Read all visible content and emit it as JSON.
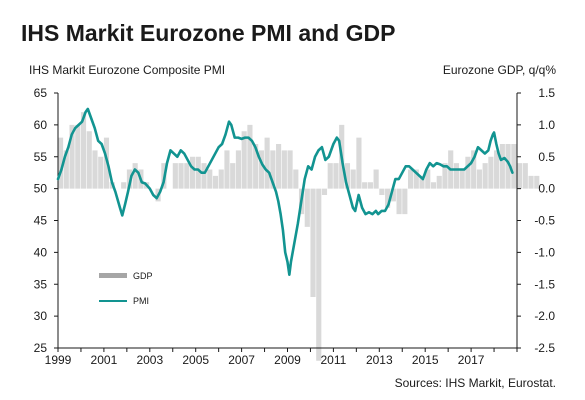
{
  "page": {
    "title": "IHS Markit Eurozone PMI and GDP",
    "source": "Sources: IHS Markit, Eurostat."
  },
  "colors": {
    "pmi": "#129491",
    "gdp": "#d9d9d9",
    "gdp_legend": "#a6a6a6",
    "axis": "#1a1a1a"
  },
  "chart_data": {
    "type": "bar+line",
    "title": "IHS Markit Eurozone PMI and GDP",
    "ylabel_left": "IHS Markit Eurozone Composite PMI",
    "ylabel_right": "Eurozone GDP, q/q%",
    "xlim": [
      1999.0,
      2019.0
    ],
    "ylim_left": [
      25,
      65
    ],
    "ylim_right": [
      -2.5,
      1.5
    ],
    "yticks_left": [
      25,
      30,
      35,
      40,
      45,
      50,
      55,
      60,
      65
    ],
    "yticks_right": [
      "-2.5",
      "-2.0",
      "-1.5",
      "-1.0",
      "-0.5",
      "0.0",
      "0.5",
      "1.0",
      "1.5"
    ],
    "xticks": [
      "1999",
      "2001",
      "2003",
      "2005",
      "2007",
      "2009",
      "2011",
      "2013",
      "2015",
      "2017"
    ],
    "legend": {
      "placement": "lower-left",
      "entries": [
        "GDP",
        "PMI"
      ]
    },
    "series": [
      {
        "name": "GDP",
        "kind": "bar",
        "axis": "right",
        "quarter_start": 1999.0,
        "values": [
          0.8,
          0.6,
          1.0,
          1.0,
          1.2,
          0.9,
          0.6,
          0.5,
          0.8,
          0.1,
          0.0,
          0.1,
          0.3,
          0.4,
          0.3,
          0.1,
          0.0,
          -0.2,
          0.4,
          0.0,
          0.4,
          0.4,
          0.4,
          0.5,
          0.5,
          0.4,
          0.3,
          0.2,
          0.3,
          0.6,
          0.4,
          0.6,
          0.9,
          1.0,
          0.7,
          0.6,
          0.8,
          0.6,
          0.7,
          0.6,
          0.6,
          0.3,
          -0.4,
          -0.6,
          -1.7,
          -2.7,
          -0.1,
          0.4,
          0.4,
          1.0,
          0.4,
          0.3,
          0.8,
          0.1,
          0.1,
          0.3,
          -0.1,
          -0.3,
          -0.2,
          -0.4,
          -0.4,
          0.3,
          0.3,
          0.2,
          0.3,
          0.1,
          0.2,
          0.4,
          0.6,
          0.4,
          0.3,
          0.5,
          0.6,
          0.3,
          0.4,
          0.5,
          0.6,
          0.7,
          0.7,
          0.7,
          0.4,
          0.4,
          0.2,
          0.2
        ]
      },
      {
        "name": "PMI",
        "kind": "line",
        "axis": "left",
        "points": [
          [
            1999.0,
            51.5
          ],
          [
            1999.15,
            53.0
          ],
          [
            1999.3,
            55.0
          ],
          [
            1999.45,
            56.5
          ],
          [
            1999.6,
            58.5
          ],
          [
            1999.75,
            59.5
          ],
          [
            1999.9,
            60.0
          ],
          [
            2000.05,
            60.5
          ],
          [
            2000.2,
            62.0
          ],
          [
            2000.3,
            62.5
          ],
          [
            2000.45,
            61.0
          ],
          [
            2000.6,
            59.5
          ],
          [
            2000.75,
            57.5
          ],
          [
            2000.9,
            57.0
          ],
          [
            2001.05,
            55.5
          ],
          [
            2001.2,
            53.5
          ],
          [
            2001.35,
            51.0
          ],
          [
            2001.5,
            49.5
          ],
          [
            2001.7,
            47.0
          ],
          [
            2001.8,
            45.8
          ],
          [
            2001.92,
            47.5
          ],
          [
            2002.05,
            49.5
          ],
          [
            2002.2,
            52.0
          ],
          [
            2002.35,
            53.0
          ],
          [
            2002.5,
            52.5
          ],
          [
            2002.65,
            51.0
          ],
          [
            2002.8,
            50.8
          ],
          [
            2003.0,
            50.0
          ],
          [
            2003.15,
            49.0
          ],
          [
            2003.3,
            48.5
          ],
          [
            2003.45,
            49.5
          ],
          [
            2003.6,
            51.0
          ],
          [
            2003.75,
            54.0
          ],
          [
            2003.9,
            56.0
          ],
          [
            2004.05,
            55.5
          ],
          [
            2004.2,
            55.0
          ],
          [
            2004.35,
            56.0
          ],
          [
            2004.5,
            55.5
          ],
          [
            2004.65,
            54.5
          ],
          [
            2004.8,
            53.5
          ],
          [
            2004.95,
            53.0
          ],
          [
            2005.1,
            53.0
          ],
          [
            2005.25,
            52.5
          ],
          [
            2005.4,
            52.5
          ],
          [
            2005.55,
            53.5
          ],
          [
            2005.7,
            54.5
          ],
          [
            2005.85,
            55.5
          ],
          [
            2006.0,
            56.5
          ],
          [
            2006.15,
            57.0
          ],
          [
            2006.3,
            58.5
          ],
          [
            2006.45,
            60.5
          ],
          [
            2006.55,
            60.0
          ],
          [
            2006.7,
            58.0
          ],
          [
            2006.85,
            58.0
          ],
          [
            2007.0,
            57.8
          ],
          [
            2007.15,
            58.0
          ],
          [
            2007.3,
            58.0
          ],
          [
            2007.45,
            57.5
          ],
          [
            2007.6,
            56.5
          ],
          [
            2007.75,
            55.0
          ],
          [
            2007.9,
            53.8
          ],
          [
            2008.05,
            53.0
          ],
          [
            2008.2,
            52.5
          ],
          [
            2008.35,
            51.0
          ],
          [
            2008.5,
            49.5
          ],
          [
            2008.6,
            48.0
          ],
          [
            2008.7,
            46.0
          ],
          [
            2008.8,
            43.5
          ],
          [
            2008.9,
            40.0
          ],
          [
            2009.0,
            38.5
          ],
          [
            2009.08,
            36.5
          ],
          [
            2009.15,
            38.5
          ],
          [
            2009.3,
            41.5
          ],
          [
            2009.45,
            44.5
          ],
          [
            2009.6,
            48.0
          ],
          [
            2009.75,
            51.5
          ],
          [
            2009.9,
            53.5
          ],
          [
            2010.05,
            53.0
          ],
          [
            2010.2,
            55.0
          ],
          [
            2010.35,
            56.0
          ],
          [
            2010.5,
            56.5
          ],
          [
            2010.65,
            54.5
          ],
          [
            2010.8,
            55.0
          ],
          [
            2011.0,
            57.0
          ],
          [
            2011.15,
            58.0
          ],
          [
            2011.25,
            57.5
          ],
          [
            2011.4,
            54.0
          ],
          [
            2011.55,
            51.0
          ],
          [
            2011.7,
            49.0
          ],
          [
            2011.85,
            47.0
          ],
          [
            2011.95,
            46.5
          ],
          [
            2012.1,
            49.0
          ],
          [
            2012.25,
            47.0
          ],
          [
            2012.4,
            46.0
          ],
          [
            2012.55,
            46.3
          ],
          [
            2012.7,
            46.0
          ],
          [
            2012.85,
            46.5
          ],
          [
            2012.95,
            46.0
          ],
          [
            2013.1,
            46.5
          ],
          [
            2013.25,
            46.5
          ],
          [
            2013.4,
            47.5
          ],
          [
            2013.55,
            49.5
          ],
          [
            2013.7,
            51.5
          ],
          [
            2013.85,
            51.5
          ],
          [
            2014.0,
            52.5
          ],
          [
            2014.15,
            53.5
          ],
          [
            2014.3,
            53.5
          ],
          [
            2014.45,
            53.0
          ],
          [
            2014.6,
            52.5
          ],
          [
            2014.75,
            52.0
          ],
          [
            2014.9,
            51.5
          ],
          [
            2015.05,
            53.0
          ],
          [
            2015.2,
            54.0
          ],
          [
            2015.35,
            53.5
          ],
          [
            2015.5,
            54.0
          ],
          [
            2015.65,
            53.8
          ],
          [
            2015.8,
            53.5
          ],
          [
            2015.95,
            53.5
          ],
          [
            2016.1,
            53.0
          ],
          [
            2016.25,
            53.0
          ],
          [
            2016.4,
            53.0
          ],
          [
            2016.55,
            53.0
          ],
          [
            2016.7,
            53.0
          ],
          [
            2016.85,
            53.5
          ],
          [
            2017.0,
            54.0
          ],
          [
            2017.15,
            55.0
          ],
          [
            2017.3,
            56.5
          ],
          [
            2017.45,
            56.0
          ],
          [
            2017.6,
            55.5
          ],
          [
            2017.75,
            56.0
          ],
          [
            2017.85,
            57.5
          ],
          [
            2017.95,
            58.5
          ],
          [
            2018.0,
            58.8
          ],
          [
            2018.1,
            57.0
          ],
          [
            2018.2,
            55.5
          ],
          [
            2018.3,
            54.5
          ],
          [
            2018.45,
            54.8
          ],
          [
            2018.6,
            54.2
          ],
          [
            2018.7,
            53.5
          ],
          [
            2018.8,
            52.5
          ]
        ]
      }
    ]
  }
}
